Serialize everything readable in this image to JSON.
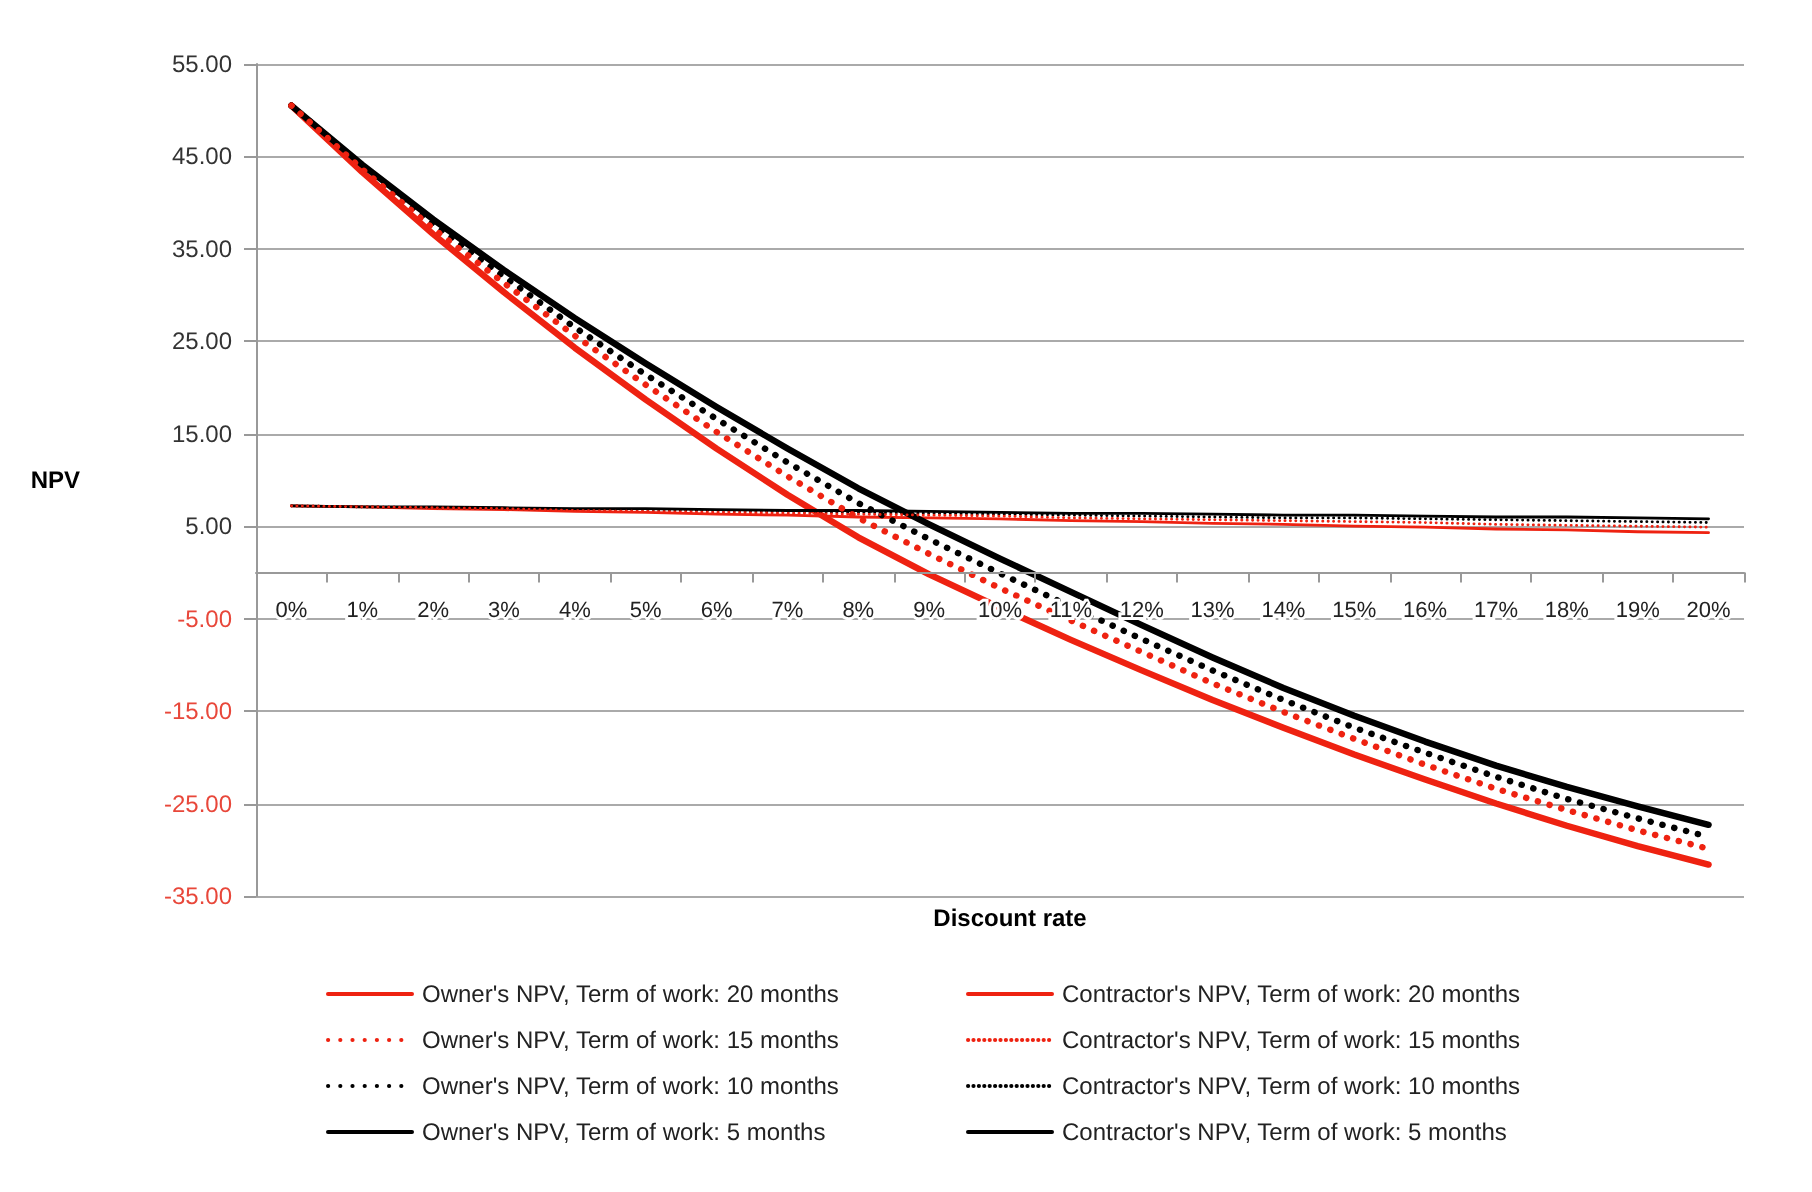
{
  "chart_data": {
    "type": "line",
    "xlabel": "Discount rate",
    "ylabel": "NPV",
    "categories": [
      "0%",
      "1%",
      "2%",
      "3%",
      "4%",
      "5%",
      "6%",
      "7%",
      "8%",
      "9%",
      "10%",
      "11%",
      "12%",
      "13%",
      "14%",
      "15%",
      "16%",
      "17%",
      "18%",
      "19%",
      "20%"
    ],
    "ylim": [
      -35,
      55
    ],
    "yticks": [
      {
        "value": -35,
        "label": "-35.00"
      },
      {
        "value": -25,
        "label": "-25.00"
      },
      {
        "value": -15,
        "label": "-15.00"
      },
      {
        "value": -5,
        "label": "-5.00"
      },
      {
        "value": 5,
        "label": "5.00"
      },
      {
        "value": 15,
        "label": "15.00"
      },
      {
        "value": 25,
        "label": "25.00"
      },
      {
        "value": 35,
        "label": "35.00"
      },
      {
        "value": 45,
        "label": "45.00"
      },
      {
        "value": 55,
        "label": "55.00"
      }
    ],
    "grid": "y",
    "legend": "bottom",
    "marker": "none",
    "series": [
      {
        "name": "Owner's NPV, Term of work: 20 months",
        "color": "#ee2211",
        "line_style": "solid",
        "values": [
          50.5,
          43.3,
          36.6,
          30.3,
          24.3,
          18.7,
          13.4,
          8.4,
          3.8,
          -0.2,
          -3.8,
          -7.3,
          -10.6,
          -13.8,
          -16.8,
          -19.7,
          -22.4,
          -25.0,
          -27.4,
          -29.6,
          -31.6
        ]
      },
      {
        "name": "Contractor's NPV, Term of work: 20 months",
        "color": "#ee2211",
        "line_style": "solid",
        "values": [
          7.2,
          7.1,
          6.9,
          6.8,
          6.6,
          6.5,
          6.3,
          6.2,
          6.0,
          5.9,
          5.8,
          5.6,
          5.5,
          5.3,
          5.2,
          5.0,
          4.9,
          4.7,
          4.6,
          4.4,
          4.3
        ]
      },
      {
        "name": "Owner's NPV, Term of work: 15 months",
        "color": "#ee2211",
        "line_style": "dotted",
        "values": [
          50.5,
          43.6,
          37.2,
          31.3,
          25.6,
          20.3,
          15.2,
          10.4,
          5.9,
          2.0,
          -1.7,
          -5.2,
          -8.6,
          -12.0,
          -15.1,
          -18.0,
          -20.8,
          -23.4,
          -25.7,
          -27.9,
          -29.9
        ]
      },
      {
        "name": "Contractor's NPV, Term of work: 15 months",
        "color": "#ee2211",
        "line_style": "dotted",
        "values": [
          7.2,
          7.1,
          7.0,
          6.9,
          6.7,
          6.6,
          6.5,
          6.4,
          6.3,
          6.2,
          6.1,
          5.9,
          5.8,
          5.7,
          5.6,
          5.5,
          5.4,
          5.2,
          5.1,
          5.0,
          4.9
        ]
      },
      {
        "name": "Owner's NPV, Term of work: 10 months",
        "color": "#000000",
        "line_style": "dotted",
        "values": [
          50.5,
          43.9,
          37.7,
          32.0,
          26.5,
          21.4,
          16.6,
          11.9,
          7.5,
          3.6,
          -0.1,
          -3.7,
          -7.2,
          -10.6,
          -13.8,
          -16.8,
          -19.5,
          -22.1,
          -24.5,
          -26.6,
          -28.6
        ]
      },
      {
        "name": "Contractor's NPV, Term of work: 10 months",
        "color": "#000000",
        "line_style": "dotted",
        "values": [
          7.2,
          7.1,
          7.0,
          6.9,
          6.8,
          6.8,
          6.7,
          6.6,
          6.5,
          6.4,
          6.3,
          6.2,
          6.1,
          6.0,
          5.9,
          5.9,
          5.8,
          5.7,
          5.6,
          5.5,
          5.4
        ]
      },
      {
        "name": "Owner's NPV, Term of work: 5 months",
        "color": "#000000",
        "line_style": "solid",
        "values": [
          50.5,
          44.1,
          38.2,
          32.7,
          27.5,
          22.6,
          17.9,
          13.4,
          9.1,
          5.2,
          1.5,
          -2.1,
          -5.7,
          -9.2,
          -12.5,
          -15.5,
          -18.3,
          -20.9,
          -23.2,
          -25.3,
          -27.3
        ]
      },
      {
        "name": "Contractor's NPV, Term of work: 5 months",
        "color": "#000000",
        "line_style": "solid",
        "values": [
          7.2,
          7.1,
          7.1,
          7.0,
          6.9,
          6.9,
          6.8,
          6.7,
          6.7,
          6.6,
          6.5,
          6.4,
          6.4,
          6.3,
          6.2,
          6.2,
          6.1,
          6.0,
          6.0,
          5.9,
          5.8
        ]
      }
    ]
  }
}
